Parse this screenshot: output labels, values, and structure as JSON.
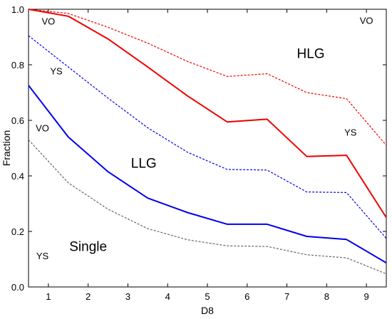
{
  "chart_data": {
    "type": "line",
    "xlabel": "D8",
    "ylabel": "Fraction",
    "xlim": [
      0.5,
      9.5
    ],
    "ylim": [
      0,
      1
    ],
    "xticks": [
      1,
      2,
      3,
      4,
      5,
      6,
      7,
      8,
      9
    ],
    "yticks": [
      0,
      0.2,
      0.4,
      0.6,
      0.8,
      1.0
    ],
    "ytick_labels": [
      "0.0",
      "0.2",
      "0.4",
      "0.6",
      "0.8",
      "1.0"
    ],
    "grid": false,
    "x": [
      0.5,
      1.5,
      2.5,
      3.5,
      4.5,
      5.5,
      6.5,
      7.5,
      8.5,
      9.5
    ],
    "series": [
      {
        "color": "#ee0000",
        "style": "dashed",
        "values": [
          1.0,
          0.985,
          0.935,
          0.878,
          0.812,
          0.758,
          0.768,
          0.7,
          0.678,
          0.51
        ]
      },
      {
        "color": "#ee0000",
        "style": "solid",
        "values": [
          1.0,
          0.975,
          0.893,
          0.792,
          0.688,
          0.594,
          0.604,
          0.47,
          0.474,
          0.25
        ]
      },
      {
        "color": "#0000ee",
        "style": "dashed",
        "values": [
          0.905,
          0.792,
          0.68,
          0.573,
          0.485,
          0.423,
          0.421,
          0.342,
          0.34,
          0.175
        ]
      },
      {
        "color": "#0000ee",
        "style": "solid",
        "values": [
          0.726,
          0.54,
          0.415,
          0.32,
          0.268,
          0.226,
          0.226,
          0.182,
          0.171,
          0.087
        ]
      },
      {
        "color": "#666666",
        "style": "dashed",
        "values": [
          0.53,
          0.375,
          0.28,
          0.21,
          0.17,
          0.148,
          0.146,
          0.116,
          0.105,
          0.047
        ]
      }
    ],
    "annotations": [
      {
        "text": "VO",
        "x": 1.0,
        "y": 0.945,
        "size": "small"
      },
      {
        "text": "VO",
        "x": 9.0,
        "y": 0.948,
        "size": "small"
      },
      {
        "text": "HLG",
        "x": 7.6,
        "y": 0.825,
        "size": "large"
      },
      {
        "text": "YS",
        "x": 1.2,
        "y": 0.765,
        "size": "small"
      },
      {
        "text": "VO",
        "x": 0.85,
        "y": 0.56,
        "size": "small"
      },
      {
        "text": "YS",
        "x": 8.6,
        "y": 0.545,
        "size": "small"
      },
      {
        "text": "LLG",
        "x": 3.4,
        "y": 0.43,
        "size": "large"
      },
      {
        "text": "Single",
        "x": 2.0,
        "y": 0.13,
        "size": "large"
      },
      {
        "text": "YS",
        "x": 0.85,
        "y": 0.1,
        "size": "small"
      }
    ]
  }
}
